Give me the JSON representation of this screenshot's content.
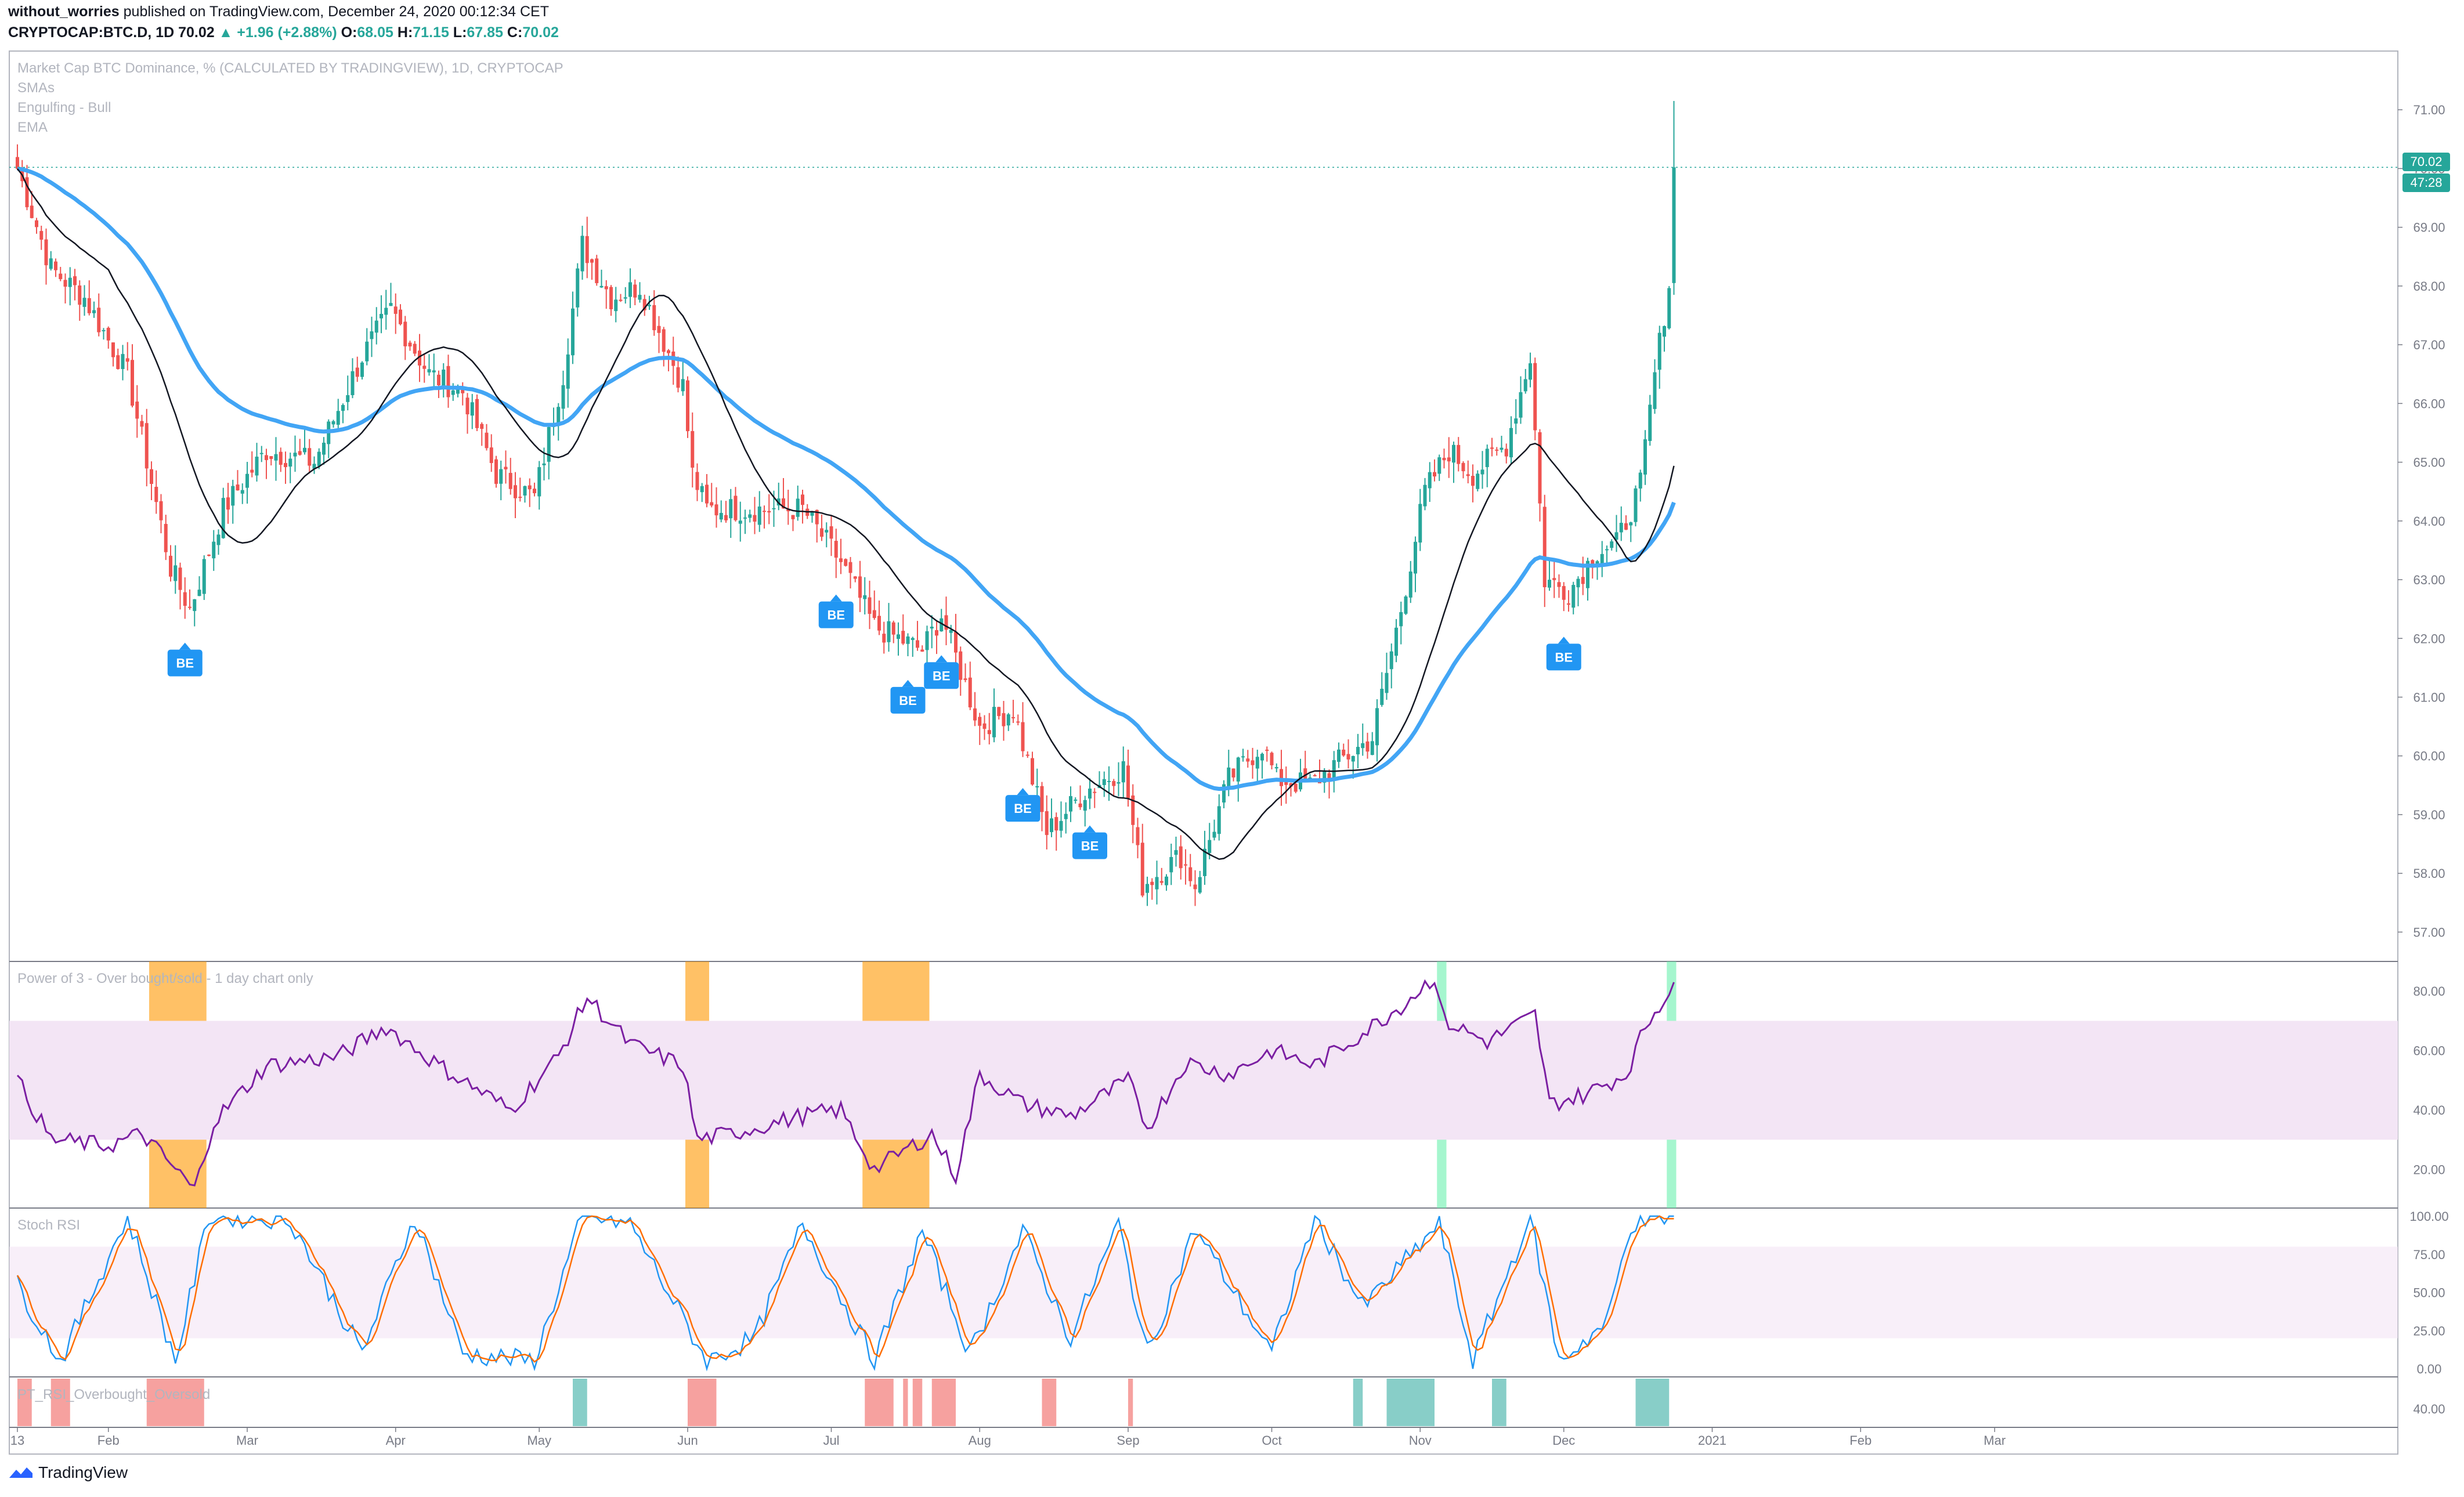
{
  "header": {
    "author": "without_worries",
    "published_text": "published on TradingView.com, December 24, 2020 00:12:34 CET",
    "symbol": "CRYPTOCAP:BTC.D, 1D",
    "last": "70.02",
    "change": "▲ +1.96 (+2.88%)",
    "o_label": "O:",
    "o": "68.05",
    "h_label": "H:",
    "h": "71.15",
    "l_label": "L:",
    "l": "67.85",
    "c_label": "C:",
    "c": "70.02"
  },
  "panes": {
    "main_title": "Market Cap BTC Dominance, % (CALCULATED BY TRADINGVIEW), 1D, CRYPTOCAP",
    "legend_smas": "SMAs",
    "legend_engulfing": "Engulfing - Bull",
    "legend_ema": "EMA",
    "power3_title": "Power of 3 - Over bought/sold - 1 day chart only",
    "stoch_title": "Stoch RSI",
    "pt_title": "PT_RSI_Overbought_Oversold"
  },
  "price_tags": {
    "last": "70.02",
    "countdown": "47:28"
  },
  "footer": {
    "brand": "TradingView"
  },
  "colors": {
    "up": "#26a69a",
    "down": "#ef5350",
    "ema": "#42a5f5",
    "sma": "#131722",
    "rsi": "#7b1fa2",
    "band": "#f3e5f5",
    "orange": "#ff9800",
    "green_hi": "#69f0ae",
    "stoch_k": "#2196f3",
    "stoch_d": "#ff6d00",
    "be": "#2196f3"
  },
  "chart_data": {
    "type": "candlestick",
    "x_ticks": [
      "13",
      "Feb",
      "Mar",
      "Apr",
      "May",
      "Jun",
      "Jul",
      "Aug",
      "Sep",
      "Oct",
      "Nov",
      "Dec",
      "2021",
      "Feb",
      "Mar"
    ],
    "y_ticks": [
      "71.00",
      "70.00",
      "69.00",
      "68.00",
      "67.00",
      "66.00",
      "65.00",
      "64.00",
      "63.00",
      "62.00",
      "61.00",
      "60.00",
      "59.00",
      "58.00",
      "57.00"
    ],
    "ylim": [
      56.5,
      72.0
    ],
    "anchors": [
      [
        "2020-01-13",
        70.0
      ],
      [
        "2020-01-20",
        68.3
      ],
      [
        "2020-01-27",
        67.8
      ],
      [
        "2020-02-05",
        66.5
      ],
      [
        "2020-02-14",
        63.2
      ],
      [
        "2020-02-18",
        62.5
      ],
      [
        "2020-02-25",
        64.2
      ],
      [
        "2020-03-05",
        65.2
      ],
      [
        "2020-03-15",
        65.0
      ],
      [
        "2020-03-25",
        66.8
      ],
      [
        "2020-03-31",
        67.6
      ],
      [
        "2020-04-08",
        66.5
      ],
      [
        "2020-04-15",
        66.2
      ],
      [
        "2020-04-22",
        64.8
      ],
      [
        "2020-04-30",
        64.4
      ],
      [
        "2020-05-06",
        66.5
      ],
      [
        "2020-05-10",
        68.7
      ],
      [
        "2020-05-16",
        67.8
      ],
      [
        "2020-05-22",
        68.0
      ],
      [
        "2020-05-31",
        66.3
      ],
      [
        "2020-06-02",
        64.8
      ],
      [
        "2020-06-05",
        64.2
      ],
      [
        "2020-06-25",
        64.2
      ],
      [
        "2020-07-03",
        63.3
      ],
      [
        "2020-07-10",
        62.2
      ],
      [
        "2020-07-20",
        61.8
      ],
      [
        "2020-07-24",
        62.4
      ],
      [
        "2020-08-01",
        60.5
      ],
      [
        "2020-08-08",
        60.8
      ],
      [
        "2020-08-15",
        58.7
      ],
      [
        "2020-08-23",
        59.4
      ],
      [
        "2020-08-31",
        59.8
      ],
      [
        "2020-09-04",
        57.8
      ],
      [
        "2020-09-12",
        58.3
      ],
      [
        "2020-09-15",
        57.8
      ],
      [
        "2020-09-22",
        59.6
      ],
      [
        "2020-09-29",
        60.2
      ],
      [
        "2020-10-02",
        59.6
      ],
      [
        "2020-10-09",
        59.5
      ],
      [
        "2020-10-15",
        59.9
      ],
      [
        "2020-10-22",
        60.3
      ],
      [
        "2020-10-28",
        62.5
      ],
      [
        "2020-11-02",
        64.5
      ],
      [
        "2020-11-07",
        65.2
      ],
      [
        "2020-11-12",
        64.8
      ],
      [
        "2020-11-19",
        65.3
      ],
      [
        "2020-11-24",
        66.8
      ],
      [
        "2020-11-27",
        63.0
      ],
      [
        "2020-12-02",
        62.8
      ],
      [
        "2020-12-08",
        63.5
      ],
      [
        "2020-12-12",
        63.6
      ],
      [
        "2020-12-17",
        64.6
      ],
      [
        "2020-12-20",
        66.5
      ],
      [
        "2020-12-23",
        68.05
      ],
      [
        "2020-12-24",
        70.02
      ]
    ],
    "last_candle": {
      "o": 68.05,
      "h": 71.15,
      "l": 67.85,
      "c": 70.02
    },
    "be_markers": [
      "2020-02-17",
      "2020-07-02",
      "2020-07-17",
      "2020-07-24",
      "2020-08-10",
      "2020-08-24",
      "2020-12-01"
    ],
    "indicators": {
      "power_of_3": {
        "y_ticks": [
          "80.00",
          "60.00",
          "40.00",
          "20.00"
        ],
        "ylim": [
          7,
          90
        ],
        "band": [
          30,
          70
        ],
        "rsi_anchors": [
          [
            "2020-01-13",
            50
          ],
          [
            "2020-01-20",
            30
          ],
          [
            "2020-02-01",
            28
          ],
          [
            "2020-02-08",
            32
          ],
          [
            "2020-02-15",
            20
          ],
          [
            "2020-02-19",
            13
          ],
          [
            "2020-02-23",
            36
          ],
          [
            "2020-03-05",
            55
          ],
          [
            "2020-03-20",
            58
          ],
          [
            "2020-03-30",
            68
          ],
          [
            "2020-04-10",
            55
          ],
          [
            "2020-04-25",
            40
          ],
          [
            "2020-05-05",
            58
          ],
          [
            "2020-05-11",
            78
          ],
          [
            "2020-05-20",
            62
          ],
          [
            "2020-05-31",
            55
          ],
          [
            "2020-06-03",
            30
          ],
          [
            "2020-06-10",
            32
          ],
          [
            "2020-06-25",
            38
          ],
          [
            "2020-07-03",
            40
          ],
          [
            "2020-07-10",
            20
          ],
          [
            "2020-07-15",
            25
          ],
          [
            "2020-07-22",
            32
          ],
          [
            "2020-07-27",
            18
          ],
          [
            "2020-08-01",
            52
          ],
          [
            "2020-08-10",
            42
          ],
          [
            "2020-08-20",
            38
          ],
          [
            "2020-09-01",
            50
          ],
          [
            "2020-09-05",
            34
          ],
          [
            "2020-09-13",
            56
          ],
          [
            "2020-09-22",
            52
          ],
          [
            "2020-10-01",
            60
          ],
          [
            "2020-10-10",
            55
          ],
          [
            "2020-10-20",
            66
          ],
          [
            "2020-10-28",
            75
          ],
          [
            "2020-11-04",
            85
          ],
          [
            "2020-11-06",
            70
          ],
          [
            "2020-11-15",
            63
          ],
          [
            "2020-11-25",
            72
          ],
          [
            "2020-11-28",
            42
          ],
          [
            "2020-12-05",
            45
          ],
          [
            "2020-12-14",
            52
          ],
          [
            "2020-12-18",
            68
          ],
          [
            "2020-12-24",
            83
          ]
        ],
        "orange_zones": [
          [
            "2020-02-10",
            "2020-02-21"
          ],
          [
            "2020-06-01",
            "2020-06-05"
          ],
          [
            "2020-07-08",
            "2020-07-21"
          ]
        ],
        "green_zones": [
          [
            "2020-11-05",
            "2020-11-06"
          ],
          [
            "2020-12-23",
            "2020-12-24"
          ]
        ]
      },
      "stoch_rsi": {
        "y_ticks": [
          "100.00",
          "75.00",
          "50.00",
          "25.00",
          "0.00"
        ],
        "band": [
          20,
          80
        ],
        "k_anchors": [
          [
            "2020-01-13",
            55
          ],
          [
            "2020-01-22",
            5
          ],
          [
            "2020-02-05",
            100
          ],
          [
            "2020-02-15",
            5
          ],
          [
            "2020-02-22",
            100
          ],
          [
            "2020-03-10",
            98
          ],
          [
            "2020-03-25",
            10
          ],
          [
            "2020-04-05",
            100
          ],
          [
            "2020-04-15",
            10
          ],
          [
            "2020-04-30",
            5
          ],
          [
            "2020-05-10",
            100
          ],
          [
            "2020-05-20",
            95
          ],
          [
            "2020-06-05",
            5
          ],
          [
            "2020-06-15",
            20
          ],
          [
            "2020-06-25",
            95
          ],
          [
            "2020-07-10",
            5
          ],
          [
            "2020-07-20",
            90
          ],
          [
            "2020-07-30",
            10
          ],
          [
            "2020-08-10",
            90
          ],
          [
            "2020-08-20",
            20
          ],
          [
            "2020-08-30",
            95
          ],
          [
            "2020-09-05",
            10
          ],
          [
            "2020-09-15",
            92
          ],
          [
            "2020-10-01",
            10
          ],
          [
            "2020-10-10",
            100
          ],
          [
            "2020-10-20",
            40
          ],
          [
            "2020-11-05",
            95
          ],
          [
            "2020-11-12",
            5
          ],
          [
            "2020-11-24",
            100
          ],
          [
            "2020-11-30",
            5
          ],
          [
            "2020-12-10",
            30
          ],
          [
            "2020-12-15",
            95
          ],
          [
            "2020-12-24",
            100
          ]
        ]
      },
      "pt_rsi": {
        "y_ticks": [
          "40.00"
        ],
        "red_zones": [
          [
            "2020-01-13",
            "2020-01-16"
          ],
          [
            "2020-01-20",
            "2020-01-24"
          ],
          [
            "2020-02-09",
            "2020-02-21"
          ],
          [
            "2020-06-01",
            "2020-06-07"
          ],
          [
            "2020-07-08",
            "2020-07-14"
          ],
          [
            "2020-07-16",
            "2020-07-17"
          ],
          [
            "2020-07-18",
            "2020-07-20"
          ],
          [
            "2020-07-22",
            "2020-07-27"
          ],
          [
            "2020-08-14",
            "2020-08-17"
          ],
          [
            "2020-09-01",
            "2020-09-02"
          ]
        ],
        "green_zones": [
          [
            "2020-05-08",
            "2020-05-11"
          ],
          [
            "2020-10-18",
            "2020-10-20"
          ],
          [
            "2020-10-25",
            "2020-11-04"
          ],
          [
            "2020-11-16",
            "2020-11-19"
          ],
          [
            "2020-12-16",
            "2020-12-23"
          ]
        ]
      }
    }
  }
}
